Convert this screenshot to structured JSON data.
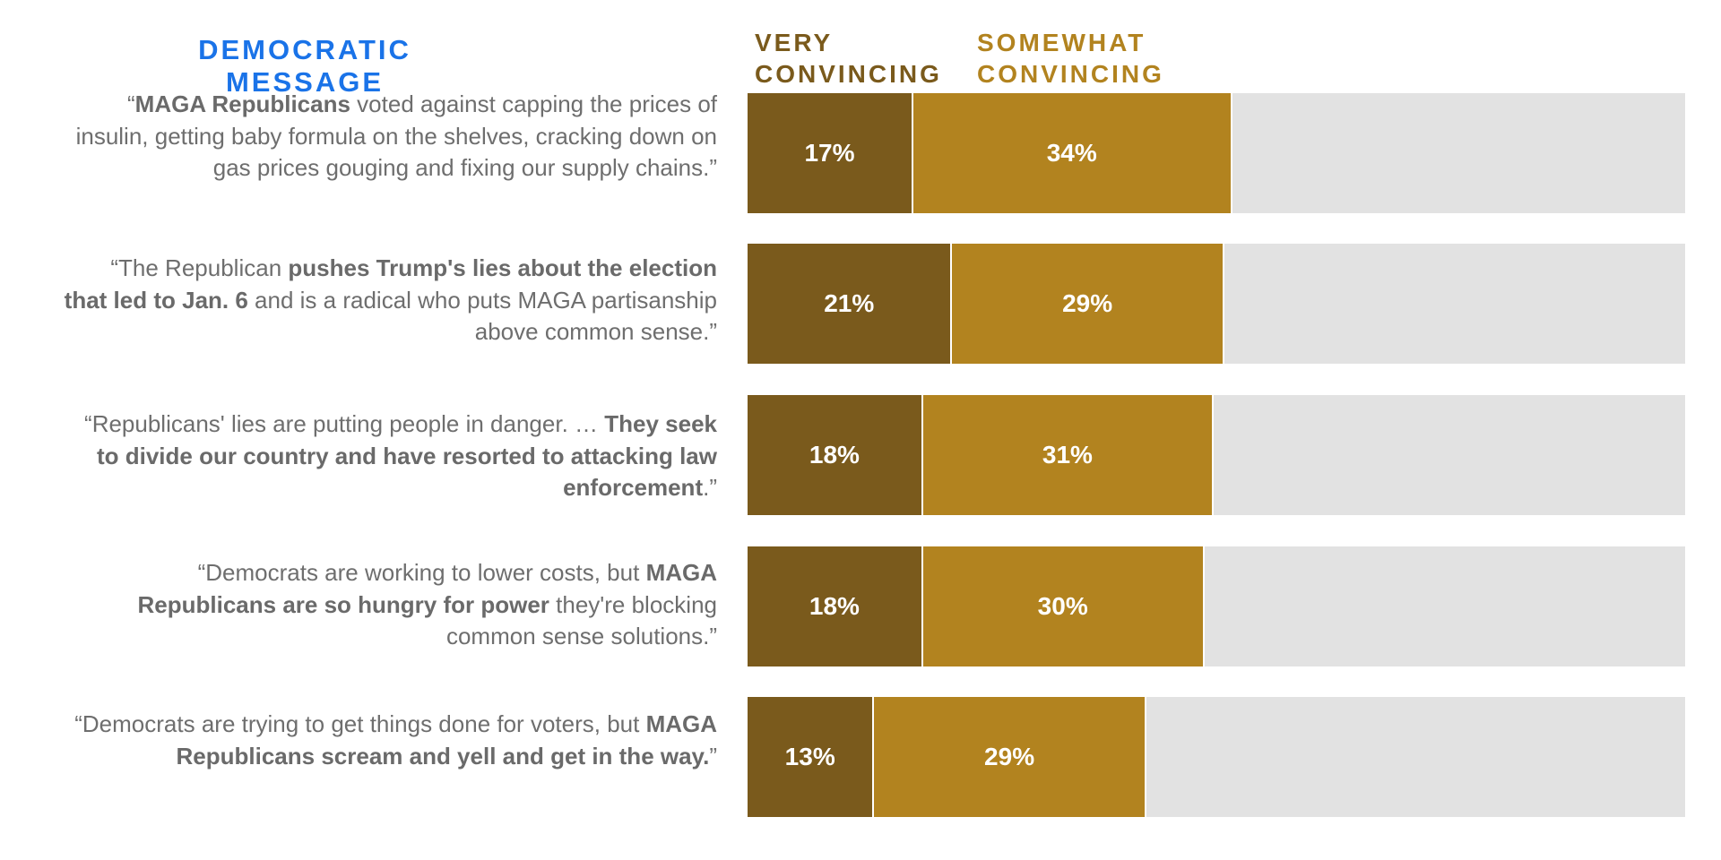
{
  "header": {
    "title": "DEMOCRATIC MESSAGE",
    "legend_very_line1": "VERY",
    "legend_very_line2": "CONVINCING",
    "legend_somewhat_line1": "SOMEWHAT",
    "legend_somewhat_line2": "CONVINCING"
  },
  "colors": {
    "title": "#1a73e8",
    "very_convincing": "#7a5a1c",
    "somewhat_convincing": "#b2831f",
    "remainder": "#e2e2e2",
    "text": "#6e6e6e"
  },
  "messages": [
    {
      "parts": [
        {
          "text": "“",
          "bold": false
        },
        {
          "text": "MAGA Republicans",
          "bold": true
        },
        {
          "text": " voted against capping the prices of insulin, getting baby formula on the shelves, cracking down on gas prices gouging and fixing our supply chains.”",
          "bold": false
        }
      ]
    },
    {
      "parts": [
        {
          "text": "“The Republican ",
          "bold": false
        },
        {
          "text": "pushes Trump's lies about the election that led to Jan. 6",
          "bold": true
        },
        {
          "text": " and is a radical who puts MAGA partisanship above common sense.”",
          "bold": false
        }
      ]
    },
    {
      "parts": [
        {
          "text": "“Republicans' lies are putting people in danger. … ",
          "bold": false
        },
        {
          "text": "They seek to divide our country and have resorted to attacking law enforcement",
          "bold": true
        },
        {
          "text": ".”",
          "bold": false
        }
      ]
    },
    {
      "parts": [
        {
          "text": "“Democrats are working to lower costs, but ",
          "bold": false
        },
        {
          "text": "MAGA Republicans are so hungry for power",
          "bold": true
        },
        {
          "text": " they're blocking common sense solutions.”",
          "bold": false
        }
      ]
    },
    {
      "parts": [
        {
          "text": "“Democrats are trying to get things done for voters, but ",
          "bold": false
        },
        {
          "text": "MAGA Republicans scream and yell and get in the way.",
          "bold": true
        },
        {
          "text": "”",
          "bold": false
        }
      ]
    }
  ],
  "chart_data": {
    "type": "bar",
    "orientation": "horizontal",
    "stacked": true,
    "title": "DEMOCRATIC MESSAGE",
    "categories": [
      "“MAGA Republicans voted against capping the prices of insulin, getting baby formula on the shelves, cracking down on gas prices gouging and fixing our supply chains.”",
      "“The Republican pushes Trump's lies about the election that led to Jan. 6 and is a radical who puts MAGA partisanship above common sense.”",
      "“Republicans' lies are putting people in danger. … They seek to divide our country and have resorted to attacking law enforcement.”",
      "“Democrats are working to lower costs, but MAGA Republicans are so hungry for power they're blocking common sense solutions.”",
      "“Democrats are trying to get things done for voters, but MAGA Republicans scream and yell and get in the way.”"
    ],
    "series": [
      {
        "name": "VERY CONVINCING",
        "values": [
          17,
          21,
          18,
          18,
          13
        ],
        "color": "#7a5a1c"
      },
      {
        "name": "SOMEWHAT CONVINCING",
        "values": [
          34,
          29,
          31,
          30,
          29
        ],
        "color": "#b2831f"
      }
    ],
    "value_labels": [
      [
        "17%",
        "34%"
      ],
      [
        "21%",
        "29%"
      ],
      [
        "18%",
        "31%"
      ],
      [
        "18%",
        "30%"
      ],
      [
        "13%",
        "29%"
      ]
    ],
    "xlim": [
      0,
      100
    ],
    "grid": false,
    "legend_position": "top"
  }
}
